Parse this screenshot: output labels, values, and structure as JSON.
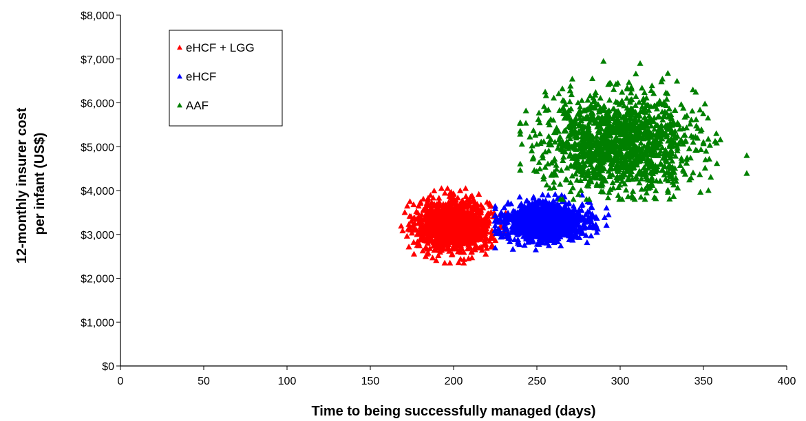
{
  "chart_data": {
    "type": "scatter",
    "title": "",
    "xlabel": "Time to being successfully managed (days)",
    "ylabel_lines": [
      "12-monthly insurer cost",
      "per infant (US$)"
    ],
    "xlim": [
      0,
      400
    ],
    "ylim": [
      0,
      8000
    ],
    "x_ticks": [
      0,
      50,
      100,
      150,
      200,
      250,
      300,
      350,
      400
    ],
    "x_tick_labels": [
      "0",
      "50",
      "100",
      "150",
      "200",
      "250",
      "300",
      "350",
      "400"
    ],
    "y_ticks": [
      0,
      1000,
      2000,
      3000,
      4000,
      5000,
      6000,
      7000,
      8000
    ],
    "y_tick_labels": [
      "$0",
      "$1,000",
      "$2,000",
      "$3,000",
      "$4,000",
      "$5,000",
      "$6,000",
      "$7,000",
      "$8,000"
    ],
    "grid": false,
    "legend_position": "top-left",
    "marker": "triangle",
    "series": [
      {
        "name": "eHCF + LGG",
        "color": "#ff0000",
        "cluster": {
          "x_center": 200,
          "y_center": 3200,
          "x_range": [
            167,
            232
          ],
          "y_range": [
            2350,
            4050
          ]
        }
      },
      {
        "name": "eHCF",
        "color": "#0000ff",
        "cluster": {
          "x_center": 255,
          "y_center": 3300,
          "x_range": [
            225,
            295
          ],
          "y_range": [
            2650,
            3950
          ]
        }
      },
      {
        "name": "AAF",
        "color": "#008000",
        "cluster": {
          "x_center": 300,
          "y_center": 5100,
          "x_range": [
            240,
            376
          ],
          "y_range": [
            3800,
            6950
          ]
        }
      }
    ],
    "notable_points": [
      {
        "series": "AAF",
        "x": 376,
        "y": 4800
      },
      {
        "series": "AAF",
        "x": 290,
        "y": 6950
      },
      {
        "series": "AAF",
        "x": 312,
        "y": 6900
      },
      {
        "series": "AAF",
        "x": 255,
        "y": 6250
      },
      {
        "series": "AAF",
        "x": 241,
        "y": 5060
      },
      {
        "series": "eHCF",
        "x": 293,
        "y": 3450
      },
      {
        "series": "eHCF + LGG",
        "x": 203,
        "y": 2360
      }
    ]
  }
}
